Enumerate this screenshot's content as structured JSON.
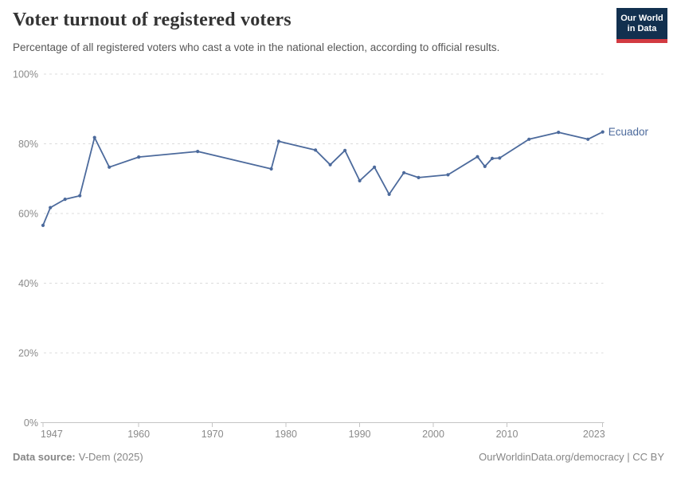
{
  "header": {
    "title": "Voter turnout of registered voters",
    "subtitle": "Percentage of all registered voters who cast a vote in the national election, according to official results.",
    "logo": {
      "line1": "Our World",
      "line2": "in Data"
    }
  },
  "chart_data": {
    "type": "line",
    "title": "Voter turnout of registered voters",
    "subtitle": "Percentage of all registered voters who cast a vote in the national election, according to official results.",
    "xlabel": "",
    "ylabel": "",
    "ylim": [
      0,
      100
    ],
    "xlim": [
      1947,
      2023
    ],
    "x_ticks": [
      1947,
      1960,
      1970,
      1980,
      1990,
      2000,
      2010,
      2023
    ],
    "y_ticks": [
      0,
      20,
      40,
      60,
      80,
      100
    ],
    "y_suffix": "%",
    "grid": "horizontal-dashed",
    "legend_position": "end-of-line",
    "series": [
      {
        "name": "Ecuador",
        "color": "#4c6a9c",
        "points": [
          [
            1947,
            56.6
          ],
          [
            1948,
            61.7
          ],
          [
            1950,
            64.1
          ],
          [
            1952,
            65.1
          ],
          [
            1954,
            81.8
          ],
          [
            1956,
            73.3
          ],
          [
            1960,
            76.2
          ],
          [
            1968,
            77.8
          ],
          [
            1978,
            72.8
          ],
          [
            1979,
            80.7
          ],
          [
            1984,
            78.2
          ],
          [
            1986,
            74.0
          ],
          [
            1988,
            78.1
          ],
          [
            1990,
            69.4
          ],
          [
            1992,
            73.3
          ],
          [
            1994,
            65.5
          ],
          [
            1996,
            71.7
          ],
          [
            1998,
            70.3
          ],
          [
            2002,
            71.1
          ],
          [
            2006,
            76.3
          ],
          [
            2007,
            73.5
          ],
          [
            2008,
            75.8
          ],
          [
            2009,
            75.9
          ],
          [
            2013,
            81.3
          ],
          [
            2017,
            83.3
          ],
          [
            2021,
            81.3
          ],
          [
            2023,
            83.4
          ]
        ]
      }
    ]
  },
  "footer": {
    "source_label": "Data source:",
    "source_value": "V-Dem (2025)",
    "right_text": "OurWorldinData.org/democracy | CC BY"
  },
  "colors": {
    "line": "#4c6a9c",
    "axis_text": "#8a8a8a",
    "grid": "#dcdcdc",
    "axis_line": "#c4c4c4",
    "title": "#333333",
    "subtitle": "#575757",
    "footer": "#868686",
    "logo_bg": "#12304f",
    "logo_accent": "#d23a41"
  }
}
